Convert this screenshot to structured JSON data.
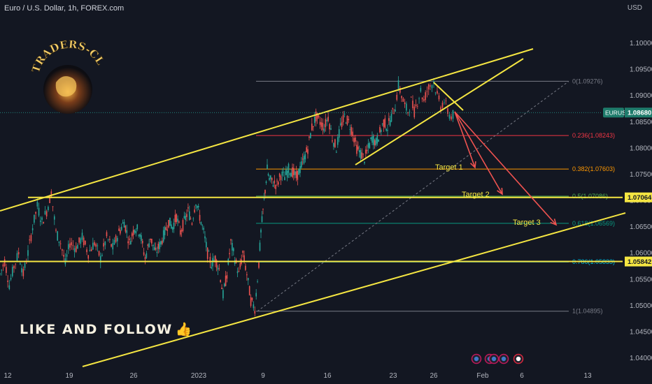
{
  "header": {
    "title": "Euro / U.S. Dollar, 1h, FOREX.com",
    "currency": "USD"
  },
  "logo": {
    "text": "TRADERS-CLUB"
  },
  "promo": {
    "text": "LIKE AND FOLLOW",
    "icon": "thumbs-up-icon"
  },
  "colors": {
    "background": "#131722",
    "bull": "#26a69a",
    "bear": "#ef5350",
    "trend": "#f5e642",
    "arrow": "#ef5350",
    "price_tag": "#1e7b6b",
    "level_tag": "#f5e642"
  },
  "chart_data": {
    "type": "candlestick",
    "title": "Euro / U.S. Dollar, 1h, FOREX.com",
    "ylim": [
      1.0375,
      1.1035
    ],
    "y_ticks": [
      "1.04000",
      "1.04500",
      "1.05000",
      "1.05500",
      "1.06000",
      "1.06500",
      "1.07000",
      "1.07500",
      "1.08000",
      "1.08500",
      "1.09000",
      "1.09500",
      "1.10000"
    ],
    "x_ticks": [
      "12",
      "19",
      "26",
      "2023",
      "9",
      "16",
      "23",
      "26",
      "Feb",
      "6",
      "13"
    ],
    "grid": false,
    "current_price": {
      "symbol": "EURUSD",
      "value": "1.08680"
    },
    "horizontal_levels": [
      {
        "value": 1.07064,
        "label": "1.07064"
      },
      {
        "value": 1.05842,
        "label": "1.05842"
      }
    ],
    "fibonacci": [
      {
        "ratio": 0,
        "value": 1.09276,
        "label": "0(1.09276)",
        "color": "#787b86"
      },
      {
        "ratio": 0.236,
        "value": 1.08243,
        "label": "0.236(1.08243)",
        "color": "#f23645"
      },
      {
        "ratio": 0.382,
        "value": 1.07603,
        "label": "0.382(1.07603)",
        "color": "#ff9800"
      },
      {
        "ratio": 0.5,
        "value": 1.07086,
        "label": "0.5(1.07086)",
        "color": "#4caf50"
      },
      {
        "ratio": 0.618,
        "value": 1.06569,
        "label": "0.618(1.06569)",
        "color": "#089981"
      },
      {
        "ratio": 0.786,
        "value": 1.05833,
        "label": "0.786(1.05833)",
        "color": "#00bcd4"
      },
      {
        "ratio": 1,
        "value": 1.04895,
        "label": "1(1.04895)",
        "color": "#787b86"
      }
    ],
    "targets": [
      {
        "label": "Target 1",
        "value": 1.0762
      },
      {
        "label": "Target 2",
        "value": 1.071
      },
      {
        "label": "Target 3",
        "value": 1.0657
      }
    ],
    "price_path": [
      [
        1.056,
        1.0585,
        1.054,
        1.0575,
        1.06,
        1.056
      ],
      [
        1.06,
        1.065,
        1.069,
        1.066,
        1.068,
        1.0715,
        1.064,
        1.062,
        1.058
      ],
      [
        1.062,
        1.061,
        1.063,
        1.06,
        1.062,
        1.059,
        1.063,
        1.061
      ],
      [
        1.064,
        1.066,
        1.062,
        1.065,
        1.064,
        1.059,
        1.063,
        1.06
      ],
      [
        1.062,
        1.064,
        1.066,
        1.065,
        1.067,
        1.064,
        1.066,
        1.068,
        1.066
      ],
      [
        1.07,
        1.067,
        1.064,
        1.06,
        1.058,
        1.059,
        1.057,
        1.052,
        1.056
      ],
      [
        1.062,
        1.059,
        1.056,
        1.06,
        1.056,
        1.051,
        1.0495
      ],
      [
        1.058,
        1.064,
        1.068,
        1.072,
        1.076
      ],
      [
        1.074,
        1.0735,
        1.073,
        1.075,
        1.0745,
        1.076,
        1.0755,
        1.0745,
        1.076,
        1.078
      ],
      [
        1.08,
        1.084,
        1.086,
        1.085,
        1.084,
        1.086,
        1.082,
        1.08,
        1.084,
        1.086,
        1.085,
        1.083
      ],
      [
        1.08,
        1.079,
        1.078,
        1.08,
        1.082,
        1.081,
        1.083,
        1.085,
        1.084,
        1.086
      ],
      [
        1.088,
        1.092,
        1.09,
        1.088,
        1.087,
        1.089,
        1.087,
        1.089,
        1.091,
        1.089,
        1.091
      ],
      [
        1.092,
        1.0927,
        1.09,
        1.088,
        1.089,
        1.087,
        1.086,
        1.0868
      ]
    ]
  }
}
